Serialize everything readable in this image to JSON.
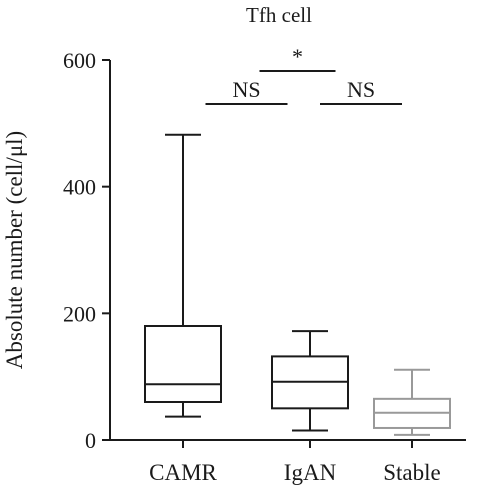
{
  "chart_data": {
    "type": "boxplot",
    "title": "Tfh cell",
    "xlabel": "",
    "ylabel": "Absolute number (cell/μl)",
    "ylim": [
      0,
      600
    ],
    "yticks": [
      0,
      200,
      400,
      600
    ],
    "categories": [
      "CAMR",
      "IgAN",
      "Stable"
    ],
    "series": [
      {
        "category": "CAMR",
        "min": 37,
        "q1": 60,
        "median": 88,
        "q3": 180,
        "max": 482,
        "color": "#1a1a1a"
      },
      {
        "category": "IgAN",
        "min": 15,
        "q1": 50,
        "median": 92,
        "q3": 132,
        "max": 172,
        "color": "#1a1a1a"
      },
      {
        "category": "Stable",
        "min": 8,
        "q1": 19,
        "median": 43,
        "q3": 65,
        "max": 111,
        "color": "#999999"
      }
    ],
    "comparisons": [
      {
        "pair": [
          "CAMR",
          "IgAN"
        ],
        "label": "NS"
      },
      {
        "pair": [
          "IgAN",
          "Stable"
        ],
        "label": "NS"
      },
      {
        "pair": [
          "CAMR",
          "Stable"
        ],
        "label": "*"
      }
    ]
  }
}
